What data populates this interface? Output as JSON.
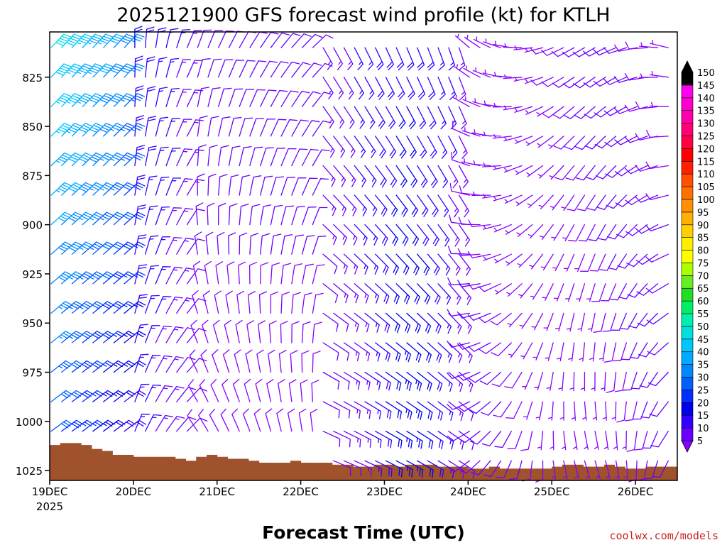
{
  "chart_data": {
    "type": "wind-barb-time-height",
    "title": "2025121900 GFS forecast wind profile (kt) for KTLH",
    "xlabel": "Forecast Time (UTC)",
    "credit": "coolwx.com/models",
    "x_ticks": [
      {
        "label": "19DEC",
        "sub": "2025",
        "hour": 0
      },
      {
        "label": "20DEC",
        "sub": "",
        "hour": 24
      },
      {
        "label": "21DEC",
        "sub": "",
        "hour": 48
      },
      {
        "label": "22DEC",
        "sub": "",
        "hour": 72
      },
      {
        "label": "23DEC",
        "sub": "",
        "hour": 96
      },
      {
        "label": "24DEC",
        "sub": "",
        "hour": 120
      },
      {
        "label": "25DEC",
        "sub": "",
        "hour": 144
      },
      {
        "label": "26DEC",
        "sub": "",
        "hour": 168
      }
    ],
    "x_range_hours": [
      0,
      180
    ],
    "y_ticks": [
      825,
      850,
      875,
      900,
      925,
      950,
      975,
      1000,
      1025
    ],
    "y_range_hpa": [
      802,
      1030
    ],
    "levels_hpa": [
      810,
      825,
      840,
      855,
      870,
      885,
      900,
      915,
      930,
      945,
      960,
      975,
      990,
      1005,
      1020
    ],
    "time_step_hours": 3,
    "colorbar": {
      "labels": [
        5,
        10,
        15,
        20,
        25,
        30,
        35,
        40,
        45,
        50,
        55,
        60,
        65,
        70,
        75,
        80,
        85,
        90,
        95,
        100,
        105,
        110,
        115,
        120,
        125,
        130,
        135,
        140,
        145,
        150
      ],
      "colors": [
        "#8800ff",
        "#6a00ff",
        "#3300ff",
        "#0000ee",
        "#0030ff",
        "#0060ff",
        "#0088ff",
        "#00aaff",
        "#00c8ff",
        "#00e0dd",
        "#00f0b0",
        "#00ee66",
        "#22dd22",
        "#66ee22",
        "#aaff00",
        "#ffff00",
        "#ffee00",
        "#ffd000",
        "#ffb000",
        "#ff9000",
        "#ff7000",
        "#ff5000",
        "#ff2000",
        "#ff0000",
        "#ff0044",
        "#ff0077",
        "#ff00aa",
        "#ff00cc",
        "#ff00ee",
        "#000000"
      ]
    },
    "terrain_color": "#a0522d",
    "surface_pressure_hpa": [
      1012,
      1011,
      1011,
      1012,
      1014,
      1015,
      1017,
      1017,
      1018,
      1018,
      1018,
      1018,
      1019,
      1020,
      1018,
      1017,
      1018,
      1019,
      1019,
      1020,
      1021,
      1021,
      1021,
      1020,
      1021,
      1021,
      1021,
      1022,
      1022,
      1023,
      1023,
      1022,
      1022,
      1023,
      1022,
      1022,
      1022,
      1023,
      1023,
      1023,
      1024,
      1024,
      1023,
      1024,
      1024,
      1024,
      1024,
      1024,
      1023,
      1022,
      1022,
      1023,
      1023,
      1022,
      1023,
      1024,
      1024,
      1023,
      1023,
      1023,
      1024
    ]
  }
}
